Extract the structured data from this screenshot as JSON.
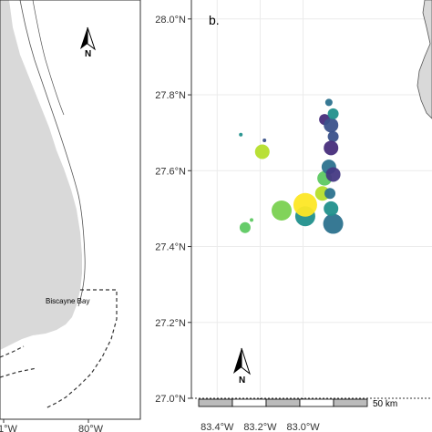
{
  "panel_a": {
    "place_label": "Biscayne Bay",
    "north_label": "N",
    "x_ticks": [
      "1°W",
      "80°W"
    ],
    "colors": {
      "land": "#d9d9d9",
      "coast": "#555555",
      "boundary": "#333333"
    }
  },
  "panel_b": {
    "panel_label": "b.",
    "north_label": "N",
    "scalebar_label": "50 km",
    "colors": {
      "land": "#d9d9d9",
      "grid": "#ebebeb"
    },
    "icons": [
      "north-arrow-icon",
      "scalebar"
    ]
  },
  "chart_data": {
    "type": "scatter",
    "x_unit": "longitude (degrees W, negative)",
    "y_unit": "latitude (degrees N)",
    "xlim": [
      -83.52,
      -82.4
    ],
    "ylim": [
      27.0,
      28.05
    ],
    "x_ticks": [
      -83.4,
      -83.2,
      -83.0
    ],
    "x_tick_labels": [
      "83.4°W",
      "83.2°W",
      "83.0°W"
    ],
    "y_ticks": [
      27.0,
      27.2,
      27.4,
      27.6,
      27.8,
      28.0
    ],
    "y_tick_labels": [
      "27.0°N",
      "27.2°N",
      "27.4°N",
      "27.6°N",
      "27.8°N",
      "28.0°N"
    ],
    "grid": true,
    "points": [
      {
        "lon": -83.29,
        "lat": 27.695,
        "size": 1,
        "color": "#21908c"
      },
      {
        "lon": -83.18,
        "lat": 27.68,
        "size": 1,
        "color": "#3b528b"
      },
      {
        "lon": -83.19,
        "lat": 27.65,
        "size": 4,
        "color": "#b5de2b"
      },
      {
        "lon": -83.24,
        "lat": 27.47,
        "size": 1,
        "color": "#5ec962"
      },
      {
        "lon": -83.27,
        "lat": 27.45,
        "size": 3,
        "color": "#5ec962"
      },
      {
        "lon": -83.1,
        "lat": 27.495,
        "size": 5,
        "color": "#7ad151"
      },
      {
        "lon": -82.99,
        "lat": 27.48,
        "size": 5,
        "color": "#21908c"
      },
      {
        "lon": -82.99,
        "lat": 27.51,
        "size": 6,
        "color": "#fde725"
      },
      {
        "lon": -82.91,
        "lat": 27.54,
        "size": 4,
        "color": "#b5de2b"
      },
      {
        "lon": -82.9,
        "lat": 27.58,
        "size": 4,
        "color": "#5ec962"
      },
      {
        "lon": -82.88,
        "lat": 27.61,
        "size": 4,
        "color": "#2c728e"
      },
      {
        "lon": -82.86,
        "lat": 27.46,
        "size": 5,
        "color": "#2c728e"
      },
      {
        "lon": -82.87,
        "lat": 27.5,
        "size": 4,
        "color": "#21908c"
      },
      {
        "lon": -82.86,
        "lat": 27.69,
        "size": 3,
        "color": "#3b528b"
      },
      {
        "lon": -82.9,
        "lat": 27.735,
        "size": 3,
        "color": "#472d7b"
      },
      {
        "lon": -82.87,
        "lat": 27.72,
        "size": 4,
        "color": "#3b528b"
      },
      {
        "lon": -82.86,
        "lat": 27.75,
        "size": 3,
        "color": "#21908c"
      },
      {
        "lon": -82.87,
        "lat": 27.66,
        "size": 4,
        "color": "#472d7b"
      },
      {
        "lon": -82.86,
        "lat": 27.59,
        "size": 4,
        "color": "#443983"
      },
      {
        "lon": -82.88,
        "lat": 27.78,
        "size": 2,
        "color": "#2c728e"
      },
      {
        "lon": -82.875,
        "lat": 27.54,
        "size": 3,
        "color": "#2c728e"
      }
    ]
  }
}
